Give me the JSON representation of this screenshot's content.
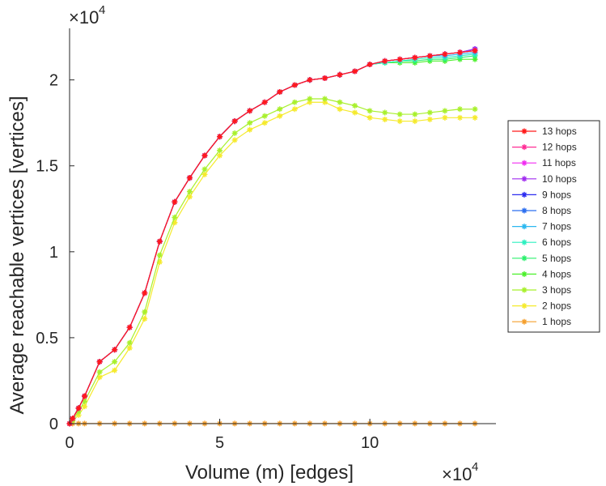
{
  "chart_data": {
    "type": "line",
    "xlabel": "Volume (m) [edges]",
    "ylabel": "Average reachable vertices [vertices]",
    "x_multiplier": "×10",
    "y_multiplier": "×10",
    "exponent": "4",
    "xlim": [
      0,
      142000
    ],
    "ylim": [
      0,
      23000
    ],
    "xticks": [
      0,
      50000,
      100000
    ],
    "xtick_labels": [
      "0",
      "5",
      "10"
    ],
    "yticks": [
      0,
      5000,
      10000,
      15000,
      20000
    ],
    "ytick_labels": [
      "0",
      "0.5",
      "1",
      "1.5",
      "2"
    ],
    "grid": false,
    "legend_position": "right",
    "marker": "*",
    "series": [
      {
        "name": "13 hops",
        "color": "#ff1a1a",
        "x": [
          0,
          1000,
          3000,
          5000,
          10000,
          15000,
          20000,
          25000,
          30000,
          35000,
          40000,
          45000,
          50000,
          55000,
          60000,
          65000,
          70000,
          75000,
          80000,
          85000,
          90000,
          95000,
          100000,
          105000,
          110000,
          115000,
          120000,
          125000,
          130000,
          135000
        ],
        "y": [
          0,
          300,
          900,
          1600,
          3600,
          4300,
          5600,
          7600,
          10600,
          12900,
          14300,
          15600,
          16700,
          17600,
          18200,
          18700,
          19300,
          19700,
          20000,
          20100,
          20300,
          20500,
          20900,
          21100,
          21200,
          21300,
          21400,
          21500,
          21600,
          21700
        ]
      },
      {
        "name": "12 hops",
        "color": "#ff2d95",
        "x": [
          0,
          1000,
          3000,
          5000,
          10000,
          15000,
          20000,
          25000,
          30000,
          35000,
          40000,
          45000,
          50000,
          55000,
          60000,
          65000,
          70000,
          75000,
          80000,
          85000,
          90000,
          95000,
          100000,
          105000,
          110000,
          115000,
          120000,
          125000,
          130000,
          135000
        ],
        "y": [
          0,
          300,
          900,
          1600,
          3600,
          4300,
          5600,
          7600,
          10600,
          12900,
          14300,
          15600,
          16700,
          17600,
          18200,
          18700,
          19300,
          19700,
          20000,
          20100,
          20300,
          20500,
          20900,
          21100,
          21200,
          21300,
          21400,
          21500,
          21600,
          21700
        ]
      },
      {
        "name": "11 hops",
        "color": "#f02cf0",
        "x": [
          0,
          1000,
          3000,
          5000,
          10000,
          15000,
          20000,
          25000,
          30000,
          35000,
          40000,
          45000,
          50000,
          55000,
          60000,
          65000,
          70000,
          75000,
          80000,
          85000,
          90000,
          95000,
          100000,
          105000,
          110000,
          115000,
          120000,
          125000,
          130000,
          135000
        ],
        "y": [
          0,
          300,
          900,
          1600,
          3600,
          4300,
          5600,
          7600,
          10600,
          12900,
          14300,
          15600,
          16700,
          17600,
          18200,
          18700,
          19300,
          19700,
          20000,
          20100,
          20300,
          20500,
          20900,
          21100,
          21200,
          21300,
          21400,
          21500,
          21600,
          21700
        ]
      },
      {
        "name": "10 hops",
        "color": "#a12cf0",
        "x": [
          0,
          1000,
          3000,
          5000,
          10000,
          15000,
          20000,
          25000,
          30000,
          35000,
          40000,
          45000,
          50000,
          55000,
          60000,
          65000,
          70000,
          75000,
          80000,
          85000,
          90000,
          95000,
          100000,
          105000,
          110000,
          115000,
          120000,
          125000,
          130000,
          135000
        ],
        "y": [
          0,
          300,
          900,
          1600,
          3600,
          4300,
          5600,
          7600,
          10600,
          12900,
          14300,
          15600,
          16700,
          17600,
          18200,
          18700,
          19300,
          19700,
          20000,
          20100,
          20300,
          20500,
          20900,
          21100,
          21200,
          21300,
          21400,
          21500,
          21600,
          21800
        ]
      },
      {
        "name": "9 hops",
        "color": "#2c2cf0",
        "x": [
          0,
          1000,
          3000,
          5000,
          10000,
          15000,
          20000,
          25000,
          30000,
          35000,
          40000,
          45000,
          50000,
          55000,
          60000,
          65000,
          70000,
          75000,
          80000,
          85000,
          90000,
          95000,
          100000,
          105000,
          110000,
          115000,
          120000,
          125000,
          130000,
          135000
        ],
        "y": [
          0,
          300,
          900,
          1600,
          3600,
          4300,
          5600,
          7600,
          10600,
          12900,
          14300,
          15600,
          16700,
          17600,
          18200,
          18700,
          19300,
          19700,
          20000,
          20100,
          20300,
          20500,
          20900,
          21100,
          21200,
          21300,
          21400,
          21500,
          21600,
          21800
        ]
      },
      {
        "name": "8 hops",
        "color": "#2c6ff0",
        "x": [
          0,
          1000,
          3000,
          5000,
          10000,
          15000,
          20000,
          25000,
          30000,
          35000,
          40000,
          45000,
          50000,
          55000,
          60000,
          65000,
          70000,
          75000,
          80000,
          85000,
          90000,
          95000,
          100000,
          105000,
          110000,
          115000,
          120000,
          125000,
          130000,
          135000
        ],
        "y": [
          0,
          300,
          900,
          1600,
          3600,
          4300,
          5600,
          7600,
          10600,
          12900,
          14300,
          15600,
          16700,
          17600,
          18200,
          18700,
          19300,
          19700,
          20000,
          20100,
          20300,
          20500,
          20900,
          21100,
          21200,
          21300,
          21400,
          21500,
          21600,
          21700
        ]
      },
      {
        "name": "7 hops",
        "color": "#2cb8f0",
        "x": [
          0,
          1000,
          3000,
          5000,
          10000,
          15000,
          20000,
          25000,
          30000,
          35000,
          40000,
          45000,
          50000,
          55000,
          60000,
          65000,
          70000,
          75000,
          80000,
          85000,
          90000,
          95000,
          100000,
          105000,
          110000,
          115000,
          120000,
          125000,
          130000,
          135000
        ],
        "y": [
          0,
          300,
          900,
          1600,
          3600,
          4300,
          5600,
          7600,
          10600,
          12900,
          14300,
          15600,
          16700,
          17600,
          18200,
          18700,
          19300,
          19700,
          20000,
          20100,
          20300,
          20500,
          20900,
          21100,
          21200,
          21300,
          21400,
          21400,
          21500,
          21600
        ]
      },
      {
        "name": "6 hops",
        "color": "#2cf0c0",
        "x": [
          0,
          1000,
          3000,
          5000,
          10000,
          15000,
          20000,
          25000,
          30000,
          35000,
          40000,
          45000,
          50000,
          55000,
          60000,
          65000,
          70000,
          75000,
          80000,
          85000,
          90000,
          95000,
          100000,
          105000,
          110000,
          115000,
          120000,
          125000,
          130000,
          135000
        ],
        "y": [
          0,
          300,
          900,
          1600,
          3600,
          4300,
          5600,
          7600,
          10600,
          12900,
          14300,
          15600,
          16700,
          17600,
          18200,
          18700,
          19300,
          19700,
          20000,
          20100,
          20300,
          20500,
          20900,
          21000,
          21100,
          21200,
          21300,
          21300,
          21400,
          21500
        ]
      },
      {
        "name": "5 hops",
        "color": "#2cf06e",
        "x": [
          0,
          1000,
          3000,
          5000,
          10000,
          15000,
          20000,
          25000,
          30000,
          35000,
          40000,
          45000,
          50000,
          55000,
          60000,
          65000,
          70000,
          75000,
          80000,
          85000,
          90000,
          95000,
          100000,
          105000,
          110000,
          115000,
          120000,
          125000,
          130000,
          135000
        ],
        "y": [
          0,
          300,
          900,
          1600,
          3600,
          4300,
          5600,
          7600,
          10600,
          12900,
          14300,
          15600,
          16700,
          17600,
          18200,
          18700,
          19300,
          19700,
          20000,
          20100,
          20300,
          20500,
          20900,
          21000,
          21100,
          21100,
          21200,
          21200,
          21300,
          21400
        ]
      },
      {
        "name": "4 hops",
        "color": "#4cf02c",
        "x": [
          0,
          1000,
          3000,
          5000,
          10000,
          15000,
          20000,
          25000,
          30000,
          35000,
          40000,
          45000,
          50000,
          55000,
          60000,
          65000,
          70000,
          75000,
          80000,
          85000,
          90000,
          95000,
          100000,
          105000,
          110000,
          115000,
          120000,
          125000,
          130000,
          135000
        ],
        "y": [
          0,
          300,
          900,
          1600,
          3600,
          4300,
          5600,
          7600,
          10600,
          12900,
          14300,
          15600,
          16700,
          17600,
          18200,
          18700,
          19300,
          19700,
          20000,
          20100,
          20300,
          20500,
          20900,
          21000,
          21000,
          21000,
          21100,
          21100,
          21200,
          21200
        ]
      },
      {
        "name": "3 hops",
        "color": "#a8f02c",
        "x": [
          0,
          1000,
          3000,
          5000,
          10000,
          15000,
          20000,
          25000,
          30000,
          35000,
          40000,
          45000,
          50000,
          55000,
          60000,
          65000,
          70000,
          75000,
          80000,
          85000,
          90000,
          95000,
          100000,
          105000,
          110000,
          115000,
          120000,
          125000,
          130000,
          135000
        ],
        "y": [
          0,
          200,
          700,
          1300,
          3000,
          3600,
          4700,
          6500,
          9800,
          12000,
          13500,
          14800,
          15900,
          16900,
          17500,
          17900,
          18300,
          18700,
          18900,
          18900,
          18700,
          18500,
          18200,
          18100,
          18000,
          18000,
          18100,
          18200,
          18300,
          18300
        ]
      },
      {
        "name": "2 hops",
        "color": "#f5ea2c",
        "x": [
          0,
          1000,
          3000,
          5000,
          10000,
          15000,
          20000,
          25000,
          30000,
          35000,
          40000,
          45000,
          50000,
          55000,
          60000,
          65000,
          70000,
          75000,
          80000,
          85000,
          90000,
          95000,
          100000,
          105000,
          110000,
          115000,
          120000,
          125000,
          130000,
          135000
        ],
        "y": [
          0,
          150,
          500,
          1000,
          2700,
          3100,
          4400,
          6100,
          9400,
          11700,
          13200,
          14500,
          15600,
          16500,
          17100,
          17500,
          17900,
          18300,
          18700,
          18700,
          18300,
          18100,
          17800,
          17700,
          17600,
          17600,
          17700,
          17800,
          17800,
          17800
        ]
      },
      {
        "name": "1 hops",
        "color": "#f59f2c",
        "x": [
          0,
          1000,
          3000,
          5000,
          10000,
          15000,
          20000,
          25000,
          30000,
          35000,
          40000,
          45000,
          50000,
          55000,
          60000,
          65000,
          70000,
          75000,
          80000,
          85000,
          90000,
          95000,
          100000,
          105000,
          110000,
          115000,
          120000,
          125000,
          130000,
          135000
        ],
        "y": [
          0,
          5,
          5,
          5,
          5,
          5,
          5,
          5,
          5,
          5,
          5,
          5,
          5,
          5,
          5,
          5,
          5,
          5,
          5,
          5,
          5,
          5,
          5,
          5,
          5,
          5,
          5,
          5,
          5,
          5
        ]
      }
    ]
  }
}
